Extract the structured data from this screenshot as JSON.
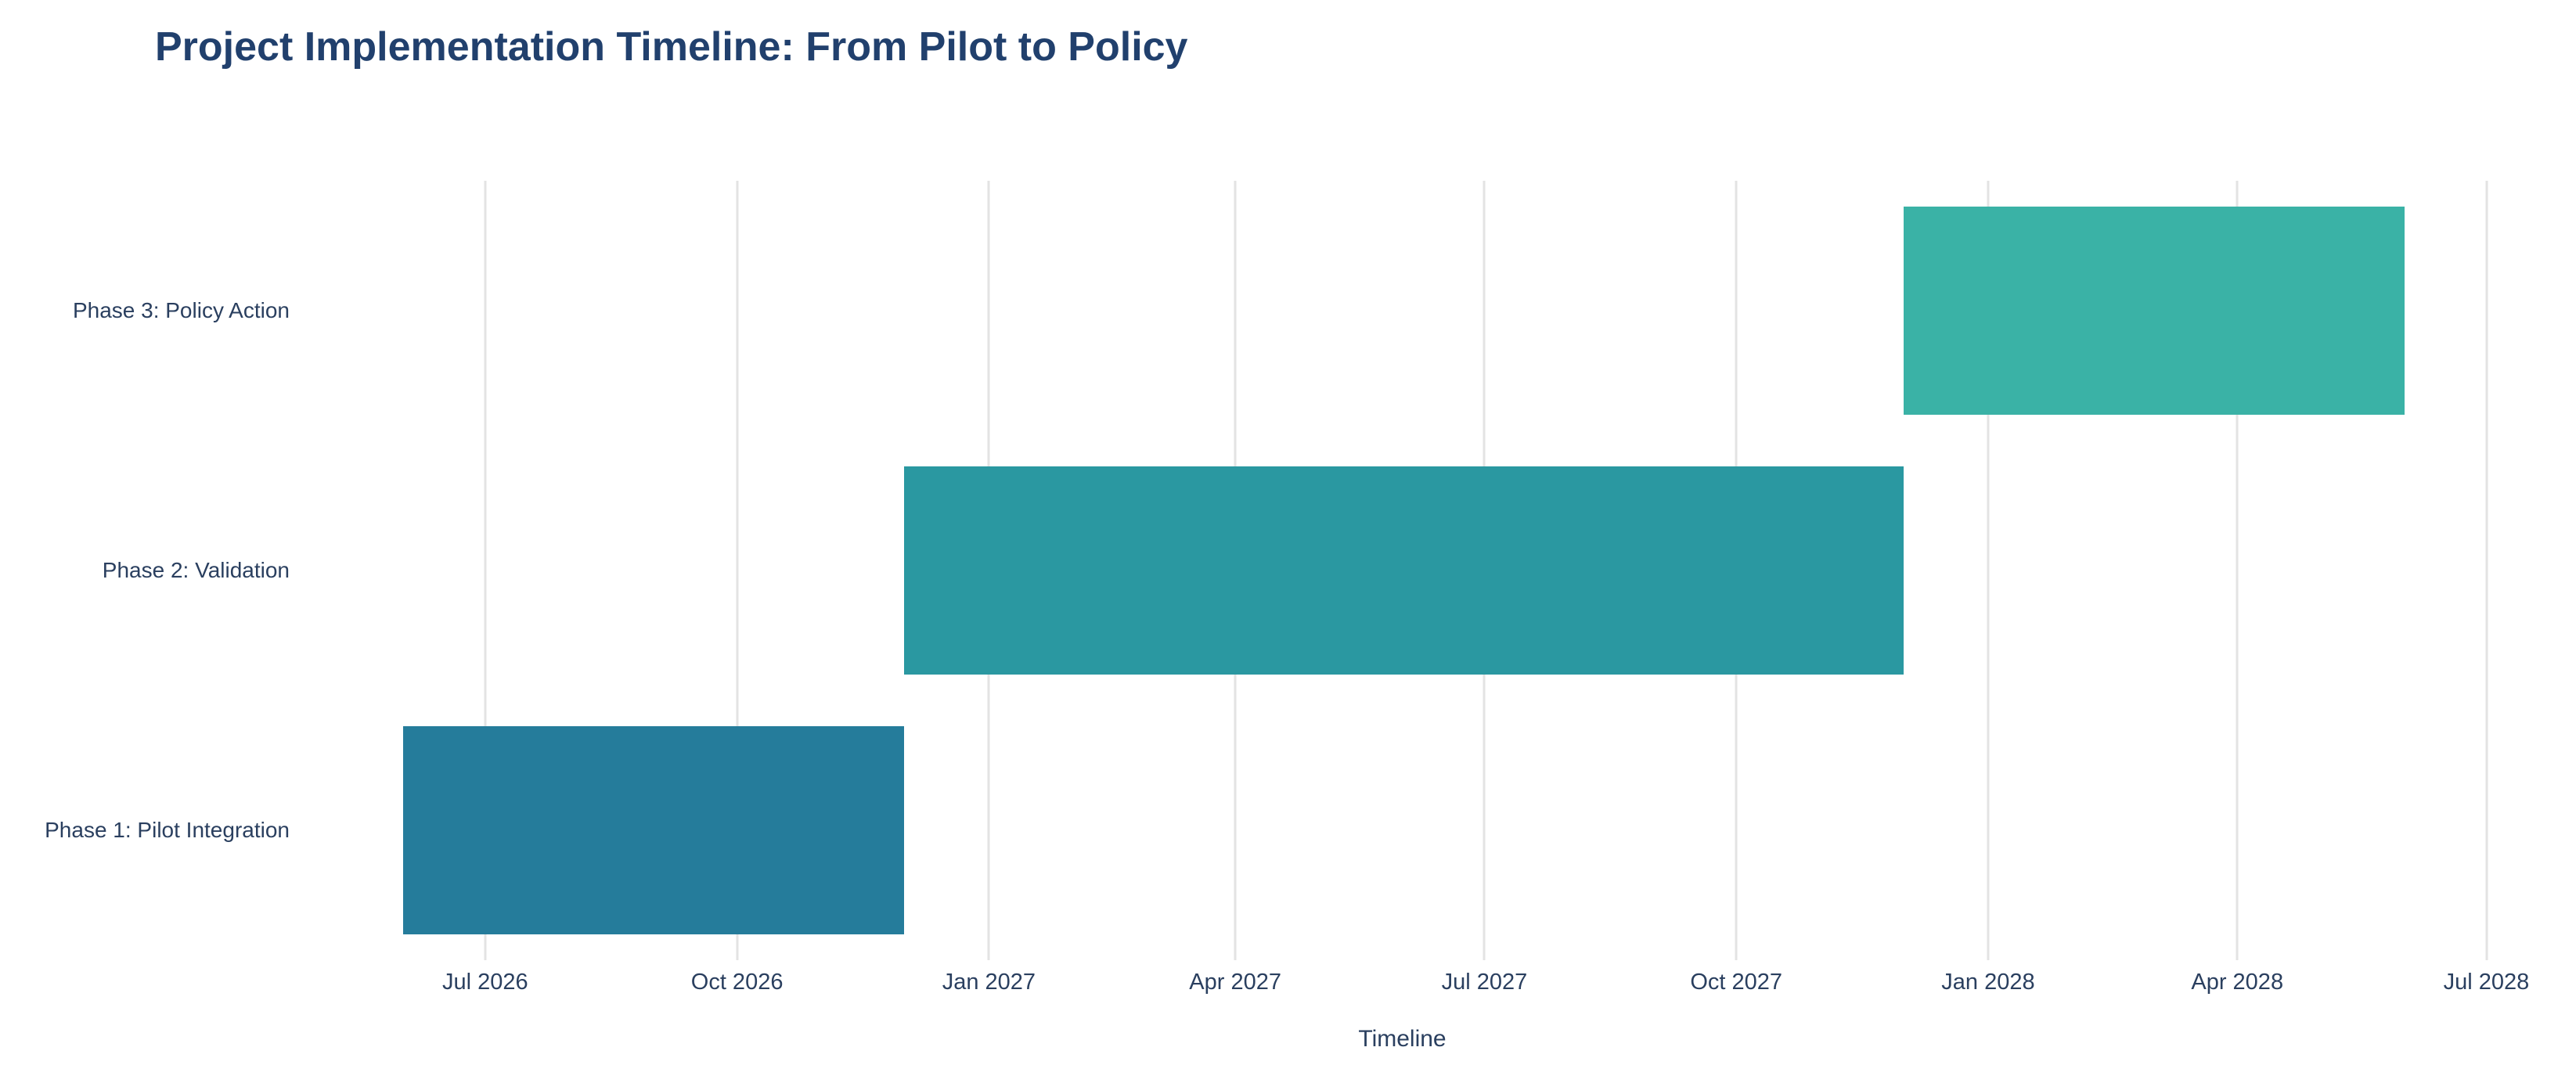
{
  "colors": {
    "background": "#ffffff",
    "title_text": "#21406d",
    "axis_text": "#2a3f5f",
    "gridline": "#e3e3e3"
  },
  "chart_data": {
    "type": "bar",
    "subtype": "gantt-timeline",
    "orientation": "horizontal",
    "title": "Project Implementation Timeline: From Pilot to Policy",
    "xlabel": "Timeline",
    "ylabel": "",
    "legend": "none",
    "grid": "vertical-only",
    "bar_thickness": 0.8,
    "x_axis": {
      "min": "2026-04-30",
      "max": "2028-07-02",
      "ticks": [
        {
          "label": "Jul 2026",
          "date": "2026-07-01"
        },
        {
          "label": "Oct 2026",
          "date": "2026-10-01"
        },
        {
          "label": "Jan 2027",
          "date": "2027-01-01"
        },
        {
          "label": "Apr 2027",
          "date": "2027-04-01"
        },
        {
          "label": "Jul 2027",
          "date": "2027-07-01"
        },
        {
          "label": "Oct 2027",
          "date": "2027-10-01"
        },
        {
          "label": "Jan 2028",
          "date": "2028-01-01"
        },
        {
          "label": "Apr 2028",
          "date": "2028-04-01"
        },
        {
          "label": "Jul 2028",
          "date": "2028-07-01"
        }
      ]
    },
    "tasks": [
      {
        "label": "Phase 1: Pilot Integration",
        "start": "2026-06-01",
        "end": "2026-12-01",
        "color": "#257c9b"
      },
      {
        "label": "Phase 2: Validation",
        "start": "2026-12-01",
        "end": "2027-12-01",
        "color": "#2a98a1"
      },
      {
        "label": "Phase 3: Policy Action",
        "start": "2027-12-01",
        "end": "2028-06-01",
        "color": "#3ab2a6"
      }
    ]
  }
}
